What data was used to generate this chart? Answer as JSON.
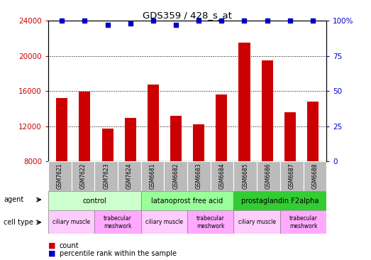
{
  "title": "GDS359 / 428_s_at",
  "samples": [
    "GSM7621",
    "GSM7622",
    "GSM7623",
    "GSM7624",
    "GSM6681",
    "GSM6682",
    "GSM6683",
    "GSM6684",
    "GSM6685",
    "GSM6686",
    "GSM6687",
    "GSM6688"
  ],
  "counts": [
    15200,
    15900,
    11700,
    12900,
    16700,
    13200,
    12200,
    15600,
    21500,
    19500,
    13600,
    14800
  ],
  "percentiles": [
    100,
    100,
    97,
    98,
    100,
    97,
    100,
    100,
    100,
    100,
    100,
    100
  ],
  "ylim_left": [
    8000,
    24000
  ],
  "ylim_right": [
    0,
    100
  ],
  "yticks_left": [
    8000,
    12000,
    16000,
    20000,
    24000
  ],
  "yticks_right": [
    0,
    25,
    50,
    75,
    100
  ],
  "bar_color": "#cc0000",
  "dot_color": "#0000cc",
  "agents": [
    {
      "label": "control",
      "start": 0,
      "end": 4,
      "color": "#ccffcc"
    },
    {
      "label": "latanoprost free acid",
      "start": 4,
      "end": 8,
      "color": "#99ff99"
    },
    {
      "label": "prostaglandin F2alpha",
      "start": 8,
      "end": 12,
      "color": "#33cc33"
    }
  ],
  "cell_types": [
    {
      "label": "ciliary muscle",
      "start": 0,
      "end": 2,
      "color": "#ffccff"
    },
    {
      "label": "trabecular\nmeshwork",
      "start": 2,
      "end": 4,
      "color": "#ffaaff"
    },
    {
      "label": "ciliary muscle",
      "start": 4,
      "end": 6,
      "color": "#ffccff"
    },
    {
      "label": "trabecular\nmeshwork",
      "start": 6,
      "end": 8,
      "color": "#ffaaff"
    },
    {
      "label": "ciliary muscle",
      "start": 8,
      "end": 10,
      "color": "#ffccff"
    },
    {
      "label": "trabecular\nmeshwork",
      "start": 10,
      "end": 12,
      "color": "#ffaaff"
    }
  ],
  "legend_count_color": "#cc0000",
  "legend_dot_color": "#0000cc",
  "grid_color": "#000000",
  "background_color": "#ffffff",
  "sample_box_color": "#bbbbbb"
}
